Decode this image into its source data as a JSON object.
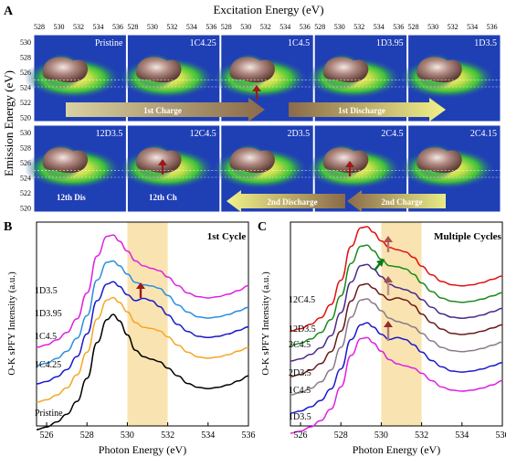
{
  "panel_a": {
    "letter": "A",
    "x_axis_title": "Excitation Energy (eV)",
    "y_axis_title": "Emission Energy (eV)",
    "top_tick_labels": [
      "528",
      "530",
      "532",
      "534",
      "536"
    ],
    "left_tick_labels": [
      "530",
      "528",
      "526",
      "524",
      "522",
      "520"
    ],
    "row1_tiles": [
      "Pristine",
      "1C4.25",
      "1C4.5",
      "1D3.95",
      "1D3.5"
    ],
    "row2_tiles": [
      "12D3.5",
      "12C4.5",
      "2D3.5",
      "2C4.5",
      "2C4.15"
    ],
    "arrows": {
      "first_charge": "1st Charge",
      "first_discharge": "1st Discharge",
      "second_discharge": "2nd Discharge",
      "second_charge": "2nd Charge",
      "twelfth_dis": "12th Dis",
      "twelfth_ch": "12th Ch"
    },
    "colors": {
      "background": "#1f3fb5",
      "glow": "#3cc13a",
      "blob": "#8c6a62",
      "arrow_red": "#9b1a1a"
    }
  },
  "panel_b": {
    "letter": "B",
    "title": "1st Cycle",
    "ylabel": "O-K sPFY Intensity (a.u.)",
    "xlabel": "Photon Energy (eV)",
    "x_ticks": [
      "526",
      "528",
      "530",
      "532",
      "534",
      "536"
    ],
    "highlight_range": [
      530,
      532
    ],
    "curve_labels": [
      "1D3.5",
      "1D3.95",
      "1C4.5",
      "1C4.25",
      "Pristine"
    ]
  },
  "panel_c": {
    "letter": "C",
    "title": "Multiple Cycles",
    "ylabel": "O-K sPFY Intensity (a.u.)",
    "xlabel": "Photon Energy (eV)",
    "x_ticks": [
      "526",
      "528",
      "530",
      "532",
      "534",
      "536"
    ],
    "highlight_range": [
      530,
      532
    ],
    "curve_labels": [
      "12C4.5",
      "12D3.5",
      "2C4.5",
      "2D3.5",
      "1C4.5",
      "1D3.5"
    ]
  },
  "chart_data": [
    {
      "type": "line",
      "title": "1st Cycle",
      "xlabel": "Photon Energy (eV)",
      "ylabel": "O-K sPFY Intensity (a.u.)",
      "xlim": [
        525.5,
        536
      ],
      "x": [
        525.5,
        526,
        526.5,
        527,
        527.5,
        528,
        528.5,
        529,
        529.3,
        529.6,
        530,
        530.4,
        530.8,
        531.2,
        531.6,
        532,
        532.5,
        533,
        533.5,
        534,
        534.5,
        535,
        535.5,
        536
      ],
      "series": [
        {
          "name": "Pristine",
          "color": "#000000",
          "values": [
            0.0,
            0.02,
            0.06,
            0.12,
            0.22,
            0.4,
            0.68,
            0.86,
            0.9,
            0.85,
            0.74,
            0.62,
            0.57,
            0.55,
            0.53,
            0.48,
            0.42,
            0.36,
            0.33,
            0.32,
            0.33,
            0.35,
            0.38,
            0.42
          ]
        },
        {
          "name": "1C4.25",
          "color": "#f5a623",
          "values": [
            0.0,
            0.02,
            0.06,
            0.12,
            0.23,
            0.42,
            0.7,
            0.86,
            0.88,
            0.84,
            0.76,
            0.67,
            0.63,
            0.62,
            0.6,
            0.55,
            0.48,
            0.42,
            0.38,
            0.37,
            0.38,
            0.4,
            0.43,
            0.46
          ]
        },
        {
          "name": "1C4.5",
          "color": "#1a1acc",
          "values": [
            0.0,
            0.02,
            0.06,
            0.12,
            0.23,
            0.42,
            0.7,
            0.84,
            0.86,
            0.82,
            0.75,
            0.7,
            0.72,
            0.7,
            0.65,
            0.58,
            0.5,
            0.44,
            0.4,
            0.39,
            0.4,
            0.42,
            0.45,
            0.48
          ]
        },
        {
          "name": "1D3.95",
          "color": "#2b8fe0",
          "values": [
            0.0,
            0.02,
            0.06,
            0.12,
            0.23,
            0.42,
            0.72,
            0.87,
            0.88,
            0.84,
            0.77,
            0.7,
            0.68,
            0.67,
            0.65,
            0.59,
            0.51,
            0.45,
            0.41,
            0.4,
            0.41,
            0.43,
            0.46,
            0.49
          ]
        },
        {
          "name": "1D3.5",
          "color": "#e020e0",
          "values": [
            0.0,
            0.02,
            0.06,
            0.12,
            0.23,
            0.44,
            0.74,
            0.9,
            0.91,
            0.86,
            0.78,
            0.7,
            0.66,
            0.64,
            0.62,
            0.57,
            0.5,
            0.44,
            0.41,
            0.4,
            0.41,
            0.43,
            0.46,
            0.5
          ]
        }
      ]
    },
    {
      "type": "line",
      "title": "Multiple Cycles",
      "xlabel": "Photon Energy (eV)",
      "ylabel": "O-K sPFY Intensity (a.u.)",
      "xlim": [
        525.5,
        536
      ],
      "x": [
        525.5,
        526,
        526.5,
        527,
        527.5,
        528,
        528.5,
        529,
        529.3,
        529.6,
        530,
        530.4,
        530.8,
        531.2,
        531.6,
        532,
        532.5,
        533,
        533.5,
        534,
        534.5,
        535,
        535.5,
        536
      ],
      "series": [
        {
          "name": "1D3.5",
          "color": "#e020e0",
          "values": [
            0.0,
            0.02,
            0.06,
            0.12,
            0.23,
            0.44,
            0.74,
            0.9,
            0.91,
            0.86,
            0.78,
            0.7,
            0.66,
            0.64,
            0.62,
            0.57,
            0.5,
            0.44,
            0.41,
            0.4,
            0.41,
            0.43,
            0.46,
            0.5
          ]
        },
        {
          "name": "1C4.5",
          "color": "#1a1acc",
          "values": [
            0.0,
            0.02,
            0.06,
            0.12,
            0.23,
            0.42,
            0.7,
            0.84,
            0.86,
            0.82,
            0.75,
            0.7,
            0.72,
            0.7,
            0.65,
            0.58,
            0.5,
            0.44,
            0.4,
            0.39,
            0.4,
            0.42,
            0.45,
            0.48
          ]
        },
        {
          "name": "2D3.5",
          "color": "#8a7a8a",
          "values": [
            0.0,
            0.02,
            0.06,
            0.12,
            0.23,
            0.44,
            0.72,
            0.88,
            0.89,
            0.85,
            0.78,
            0.71,
            0.68,
            0.66,
            0.63,
            0.57,
            0.5,
            0.44,
            0.41,
            0.4,
            0.41,
            0.43,
            0.46,
            0.49
          ]
        },
        {
          "name": "2C4.5",
          "color": "#6b1a1a",
          "values": [
            0.0,
            0.02,
            0.06,
            0.12,
            0.23,
            0.42,
            0.7,
            0.85,
            0.86,
            0.82,
            0.76,
            0.71,
            0.73,
            0.71,
            0.66,
            0.58,
            0.5,
            0.44,
            0.4,
            0.39,
            0.4,
            0.42,
            0.45,
            0.48
          ]
        },
        {
          "name": "12D3.5",
          "color": "#4a2a8a",
          "values": [
            0.0,
            0.02,
            0.06,
            0.12,
            0.23,
            0.44,
            0.72,
            0.87,
            0.88,
            0.84,
            0.77,
            0.7,
            0.67,
            0.65,
            0.62,
            0.56,
            0.49,
            0.43,
            0.4,
            0.39,
            0.4,
            0.42,
            0.45,
            0.48
          ]
        },
        {
          "name": "12C4.5",
          "color": "#1a8a1a",
          "values": [
            0.0,
            0.02,
            0.06,
            0.12,
            0.24,
            0.46,
            0.76,
            0.92,
            0.93,
            0.88,
            0.8,
            0.74,
            0.73,
            0.71,
            0.66,
            0.58,
            0.5,
            0.44,
            0.41,
            0.4,
            0.41,
            0.43,
            0.46,
            0.49
          ]
        },
        {
          "name": "",
          "color": "#e01010",
          "values": [
            0.0,
            0.02,
            0.06,
            0.12,
            0.24,
            0.46,
            0.77,
            0.94,
            0.95,
            0.9,
            0.82,
            0.76,
            0.74,
            0.72,
            0.67,
            0.59,
            0.51,
            0.45,
            0.42,
            0.41,
            0.42,
            0.44,
            0.47,
            0.5
          ]
        }
      ]
    }
  ]
}
